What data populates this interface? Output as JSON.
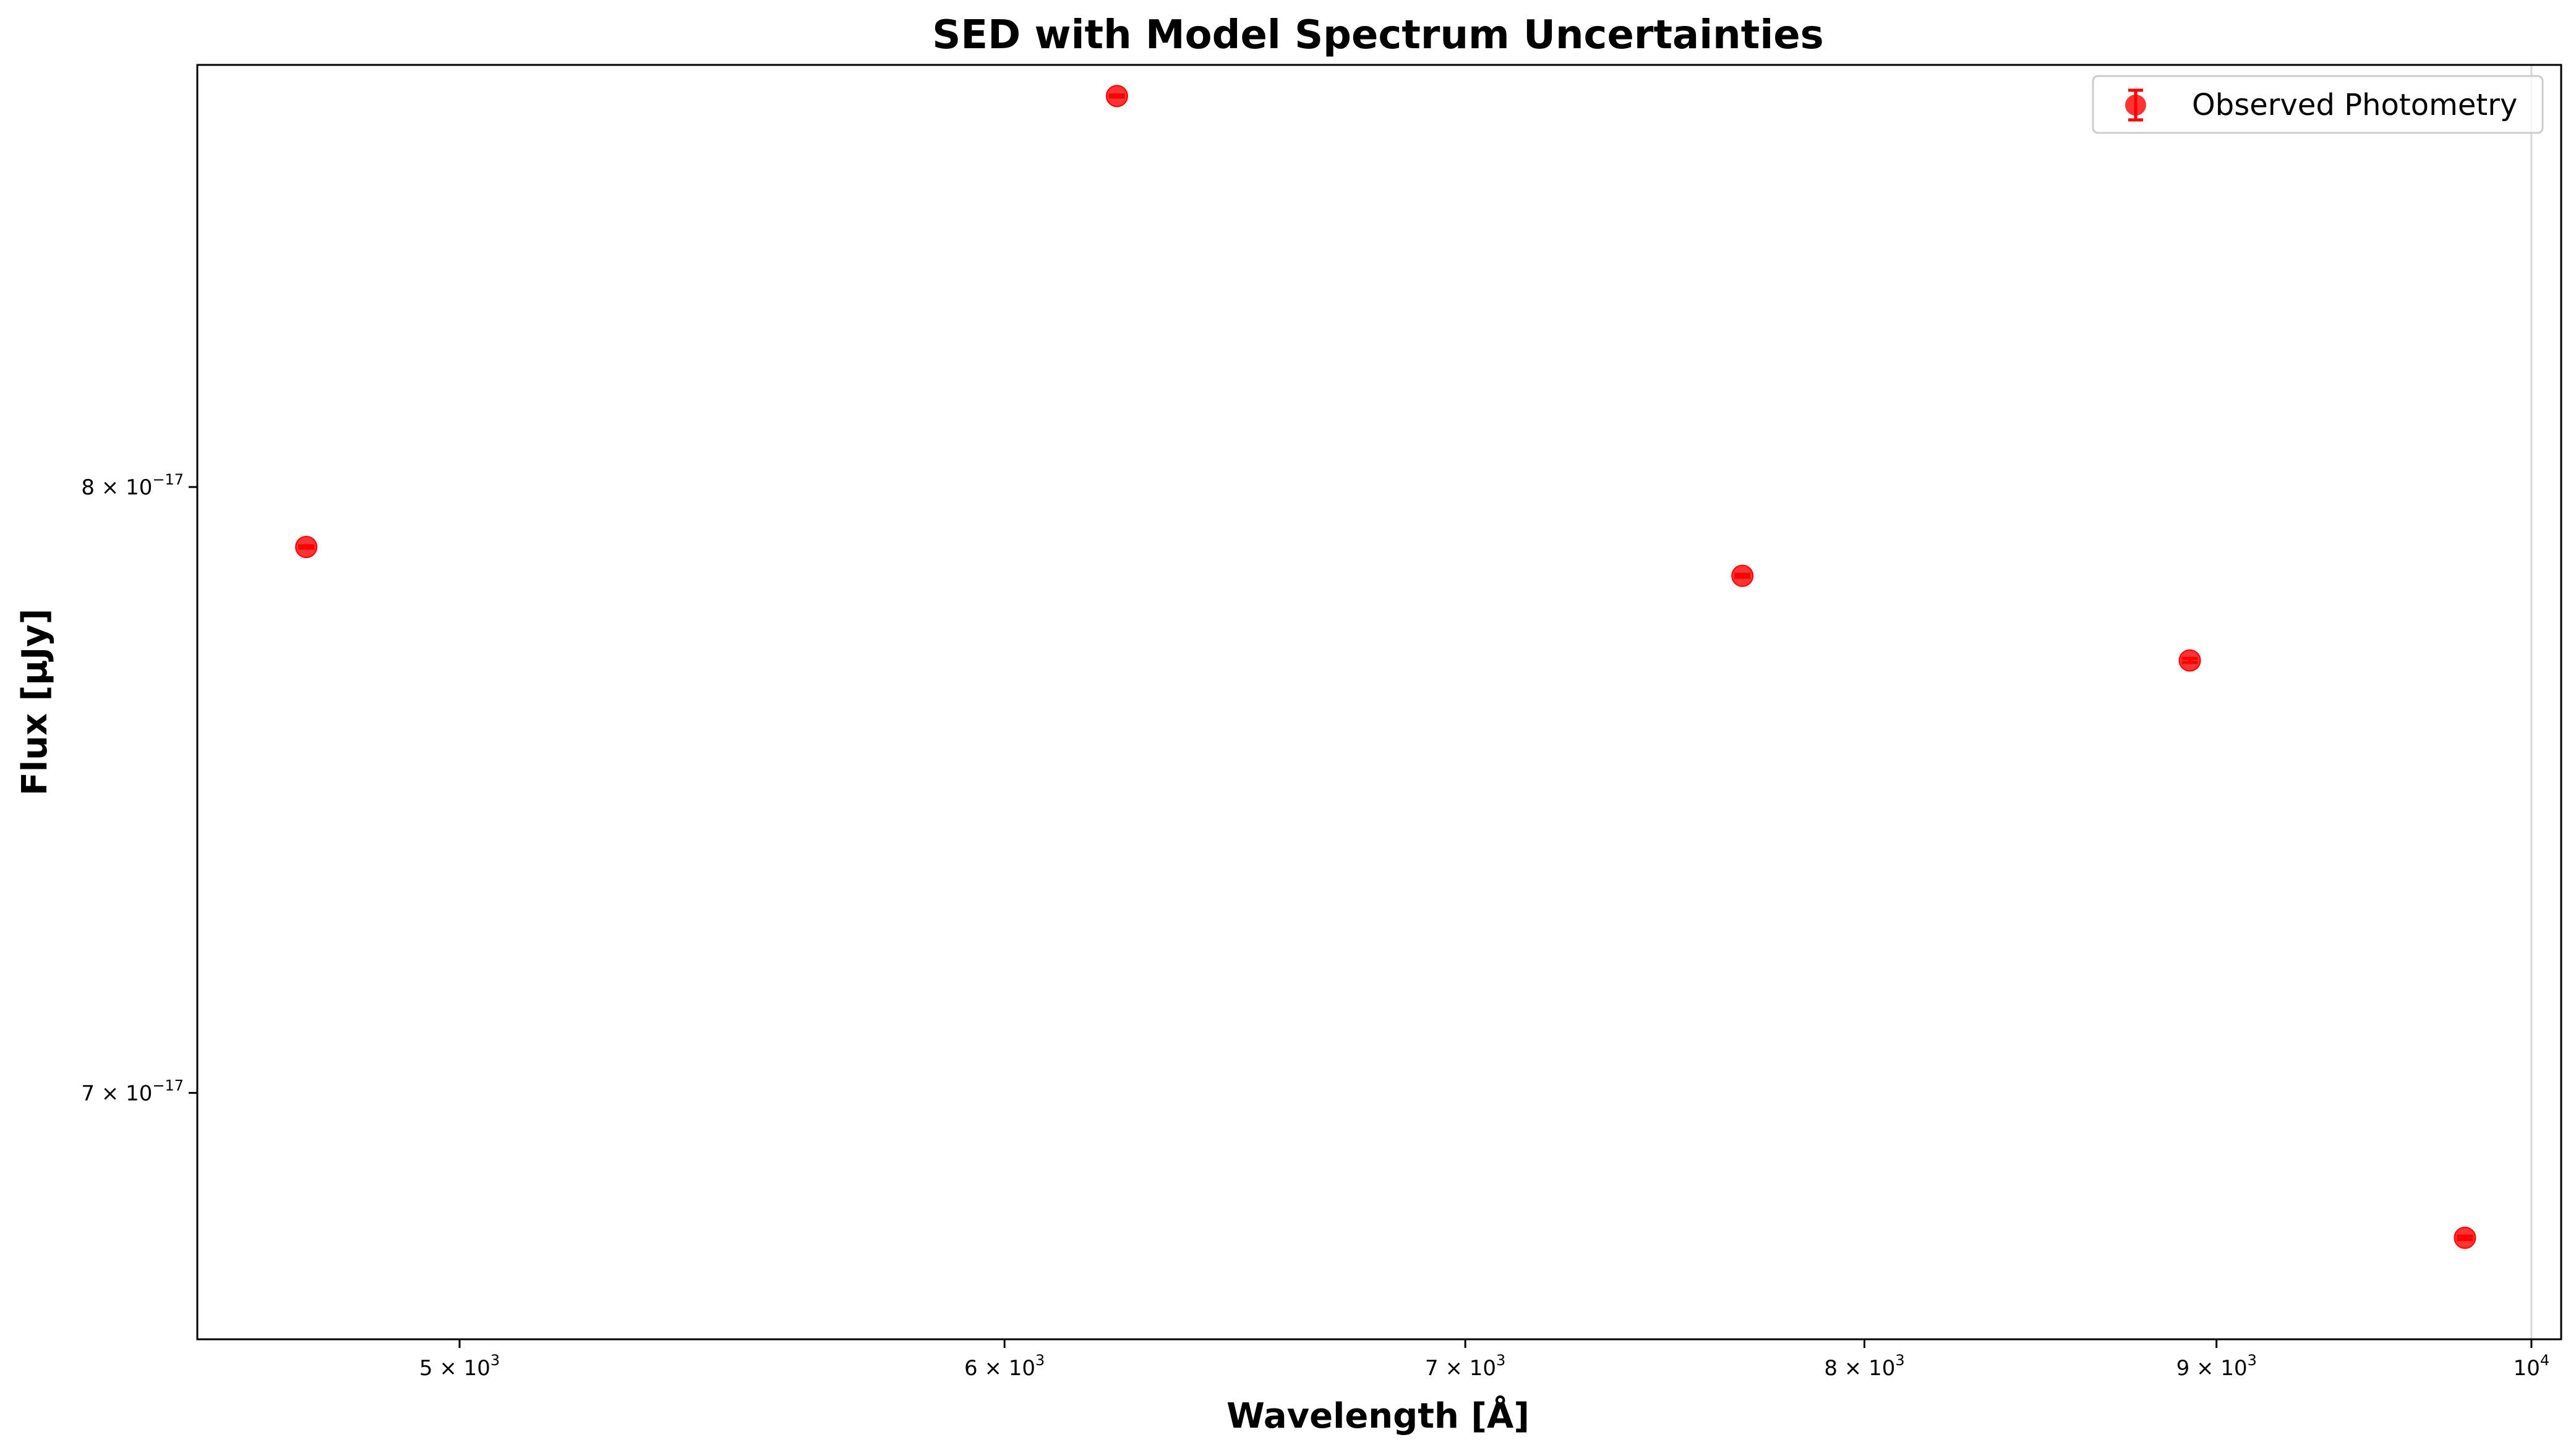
{
  "chart_data": {
    "type": "scatter",
    "title": "SED with Model Spectrum Uncertainties",
    "xlabel": "Wavelength [Å]",
    "ylabel": "Flux [μJy]",
    "xscale": "log",
    "yscale": "log",
    "xlim": [
      4580,
      10100
    ],
    "ylim": [
      6.63e-17,
      8.78e-17
    ],
    "grid": false,
    "legend": {
      "placement": "top-right",
      "entries": [
        "Observed Photometry"
      ]
    },
    "colors": {
      "series": "#ff0000",
      "axis": "#000000",
      "vline": "#d8d8d8"
    },
    "reference_line_x": 10000,
    "x_ticks": [
      {
        "value": 5000,
        "mantissa": "5",
        "exponent": "3"
      },
      {
        "value": 6000,
        "mantissa": "6",
        "exponent": "3"
      },
      {
        "value": 7000,
        "mantissa": "7",
        "exponent": "3"
      },
      {
        "value": 8000,
        "mantissa": "8",
        "exponent": "3"
      },
      {
        "value": 9000,
        "mantissa": "9",
        "exponent": "3"
      },
      {
        "value": 10000,
        "mantissa": "",
        "exponent": "4"
      }
    ],
    "y_ticks": [
      {
        "value": 8e-17,
        "mantissa": "8",
        "exponent": "−17"
      },
      {
        "value": 7e-17,
        "mantissa": "7",
        "exponent": "−17"
      }
    ],
    "series": [
      {
        "name": "Observed Photometry",
        "x": [
          4750,
          6230,
          7680,
          8920,
          9780
        ],
        "y": [
          7.895e-17,
          8.72e-17,
          7.845e-17,
          7.7e-17,
          6.78e-17
        ],
        "yerr": [
          2e-20,
          2e-20,
          2.5e-20,
          3.5e-20,
          2.5e-20
        ]
      }
    ]
  }
}
